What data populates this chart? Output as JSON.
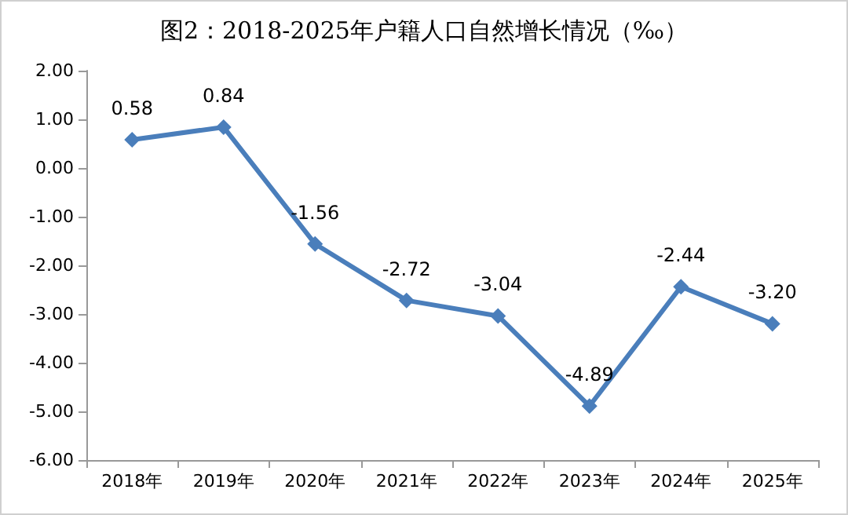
{
  "chart_data": {
    "type": "line",
    "title": "图2：2018-2025年户籍人口自然增长情况（‰）",
    "categories": [
      "2018年",
      "2019年",
      "2020年",
      "2021年",
      "2022年",
      "2023年",
      "2024年",
      "2025年"
    ],
    "series": [
      {
        "color": "#4a7ebb",
        "values": [
          0.58,
          0.84,
          -1.56,
          -2.72,
          -3.04,
          -4.89,
          -2.44,
          -3.2
        ],
        "value_labels": [
          "0.58",
          "0.84",
          "-1.56",
          "-2.72",
          "-3.04",
          "-4.89",
          "-2.44",
          "-3.20"
        ]
      }
    ],
    "ylim": [
      -6,
      2
    ],
    "yticks": [
      {
        "value": -6,
        "label": "-6.00"
      },
      {
        "value": -5,
        "label": "-5.00"
      },
      {
        "value": -4,
        "label": "-4.00"
      },
      {
        "value": -3,
        "label": "-3.00"
      },
      {
        "value": -2,
        "label": "-2.00"
      },
      {
        "value": -1,
        "label": "-1.00"
      },
      {
        "value": 0,
        "label": "0.00"
      },
      {
        "value": 1,
        "label": "1.00"
      },
      {
        "value": 2,
        "label": "2.00"
      }
    ],
    "grid": false,
    "marker": "diamond",
    "line_style": "solid"
  }
}
